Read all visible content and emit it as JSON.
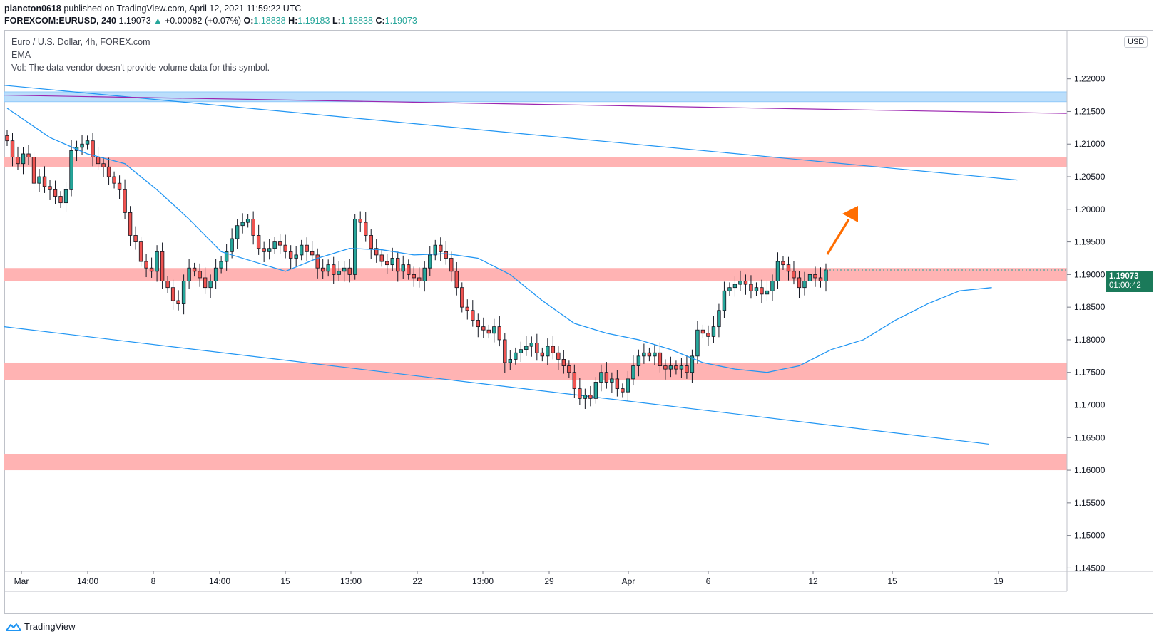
{
  "header": {
    "user": "plancton0618",
    "published": "published on TradingView.com, April 12, 2021 11:59:22 UTC",
    "symbol": "FOREXCOM:EURUSD, 240",
    "last": "1.19073",
    "change_arrow": "▲",
    "change": "+0.00082 (+0.07%)",
    "o_label": "O:",
    "o": "1.18838",
    "h_label": "H:",
    "h": "1.19183",
    "l_label": "L:",
    "l": "1.18838",
    "c_label": "C:",
    "c": "1.19073"
  },
  "legend": {
    "title": "Euro / U.S. Dollar, 4h, FOREX.com",
    "ema": "EMA",
    "vol": "Vol: The data vendor doesn't provide volume data for this symbol."
  },
  "price_axis": {
    "currency": "USD",
    "last_price": "1.19073",
    "countdown": "01:00:42"
  },
  "footer": {
    "brand": "TradingView"
  },
  "colors": {
    "up": "#26a69a",
    "down": "#ef5350",
    "ema": "#2196f3",
    "trendline": "#2196f3",
    "resistance_zone": "#ffb3b3",
    "top_zone": "#bbdefb",
    "purple_line": "#9c27b0",
    "arrow": "#ff6d00"
  },
  "chart_data": {
    "type": "candlestick",
    "y_range": [
      1.1445,
      1.2275
    ],
    "y_ticks": [
      "1.22000",
      "1.21500",
      "1.21000",
      "1.20500",
      "1.20000",
      "1.19500",
      "1.19000",
      "1.18500",
      "1.18000",
      "1.17500",
      "1.17000",
      "1.16500",
      "1.16000",
      "1.15500",
      "1.15000",
      "1.14500"
    ],
    "x_ticks": [
      "Mar",
      "14:00",
      "8",
      "14:00",
      "15",
      "13:00",
      "22",
      "13:00",
      "29",
      "Apr",
      "6",
      "12",
      "15",
      "19"
    ],
    "zones": [
      {
        "from": 1.218,
        "to": 1.2165,
        "color": "blue"
      },
      {
        "from": 1.208,
        "to": 1.2065,
        "color": "red"
      },
      {
        "from": 1.191,
        "to": 1.189,
        "color": "red"
      },
      {
        "from": 1.1765,
        "to": 1.1738,
        "color": "red"
      },
      {
        "from": 1.1625,
        "to": 1.16,
        "color": "red"
      }
    ],
    "closes": [
      1.2105,
      1.208,
      1.207,
      1.2085,
      1.208,
      1.204,
      1.205,
      1.2035,
      1.203,
      1.202,
      1.201,
      1.203,
      1.209,
      1.2095,
      1.21,
      1.2105,
      1.208,
      1.207,
      1.2065,
      1.205,
      1.204,
      1.203,
      1.1995,
      1.196,
      1.195,
      1.192,
      1.191,
      1.1905,
      1.1935,
      1.189,
      1.188,
      1.186,
      1.1855,
      1.189,
      1.191,
      1.1905,
      1.1895,
      1.188,
      1.189,
      1.191,
      1.192,
      1.1935,
      1.1955,
      1.1975,
      1.198,
      1.1985,
      1.196,
      1.194,
      1.1935,
      1.194,
      1.195,
      1.1945,
      1.1935,
      1.1925,
      1.193,
      1.1945,
      1.1935,
      1.193,
      1.191,
      1.1905,
      1.1915,
      1.19,
      1.1905,
      1.191,
      1.19,
      1.1985,
      1.198,
      1.196,
      1.194,
      1.193,
      1.192,
      1.1915,
      1.1925,
      1.1905,
      1.1915,
      1.19,
      1.1895,
      1.189,
      1.191,
      1.193,
      1.1945,
      1.1935,
      1.1925,
      1.1905,
      1.188,
      1.185,
      1.1845,
      1.183,
      1.182,
      1.1815,
      1.181,
      1.182,
      1.18,
      1.1765,
      1.177,
      1.178,
      1.1785,
      1.179,
      1.1795,
      1.178,
      1.1775,
      1.179,
      1.178,
      1.177,
      1.176,
      1.175,
      1.1725,
      1.171,
      1.1715,
      1.171,
      1.1735,
      1.175,
      1.1735,
      1.174,
      1.1725,
      1.172,
      1.174,
      1.176,
      1.1775,
      1.178,
      1.1775,
      1.178,
      1.176,
      1.1755,
      1.176,
      1.1755,
      1.176,
      1.175,
      1.1775,
      1.1815,
      1.181,
      1.1805,
      1.182,
      1.1845,
      1.1875,
      1.188,
      1.1885,
      1.189,
      1.1885,
      1.1875,
      1.188,
      1.187,
      1.1875,
      1.189,
      1.192,
      1.1915,
      1.1905,
      1.1895,
      1.188,
      1.189,
      1.19,
      1.1895,
      1.189,
      1.1907
    ],
    "ema_points": [
      [
        0,
        1.2155
      ],
      [
        8,
        1.211
      ],
      [
        15,
        1.2085
      ],
      [
        22,
        1.207
      ],
      [
        28,
        1.203
      ],
      [
        34,
        1.1985
      ],
      [
        40,
        1.1935
      ],
      [
        46,
        1.192
      ],
      [
        52,
        1.1905
      ],
      [
        58,
        1.1925
      ],
      [
        64,
        1.194
      ],
      [
        70,
        1.1938
      ],
      [
        76,
        1.193
      ],
      [
        82,
        1.1932
      ],
      [
        88,
        1.1925
      ],
      [
        94,
        1.19
      ],
      [
        100,
        1.186
      ],
      [
        106,
        1.1825
      ],
      [
        112,
        1.181
      ],
      [
        118,
        1.18
      ],
      [
        124,
        1.1785
      ],
      [
        130,
        1.1765
      ],
      [
        136,
        1.1755
      ],
      [
        142,
        1.175
      ],
      [
        148,
        1.176
      ],
      [
        154,
        1.1785
      ],
      [
        160,
        1.18
      ],
      [
        166,
        1.183
      ],
      [
        172,
        1.1855
      ],
      [
        178,
        1.1875
      ],
      [
        184,
        1.188
      ]
    ],
    "trendlines": [
      {
        "x1": 0,
        "y1": 1.219,
        "x2": 1.43,
        "y2": 1.2045
      },
      {
        "x1": 0,
        "y1": 1.182,
        "x2": 1.39,
        "y2": 1.164
      },
      {
        "x1": 0,
        "y1": 1.2175,
        "x2": 1.5,
        "y2": 1.2147
      }
    ]
  }
}
